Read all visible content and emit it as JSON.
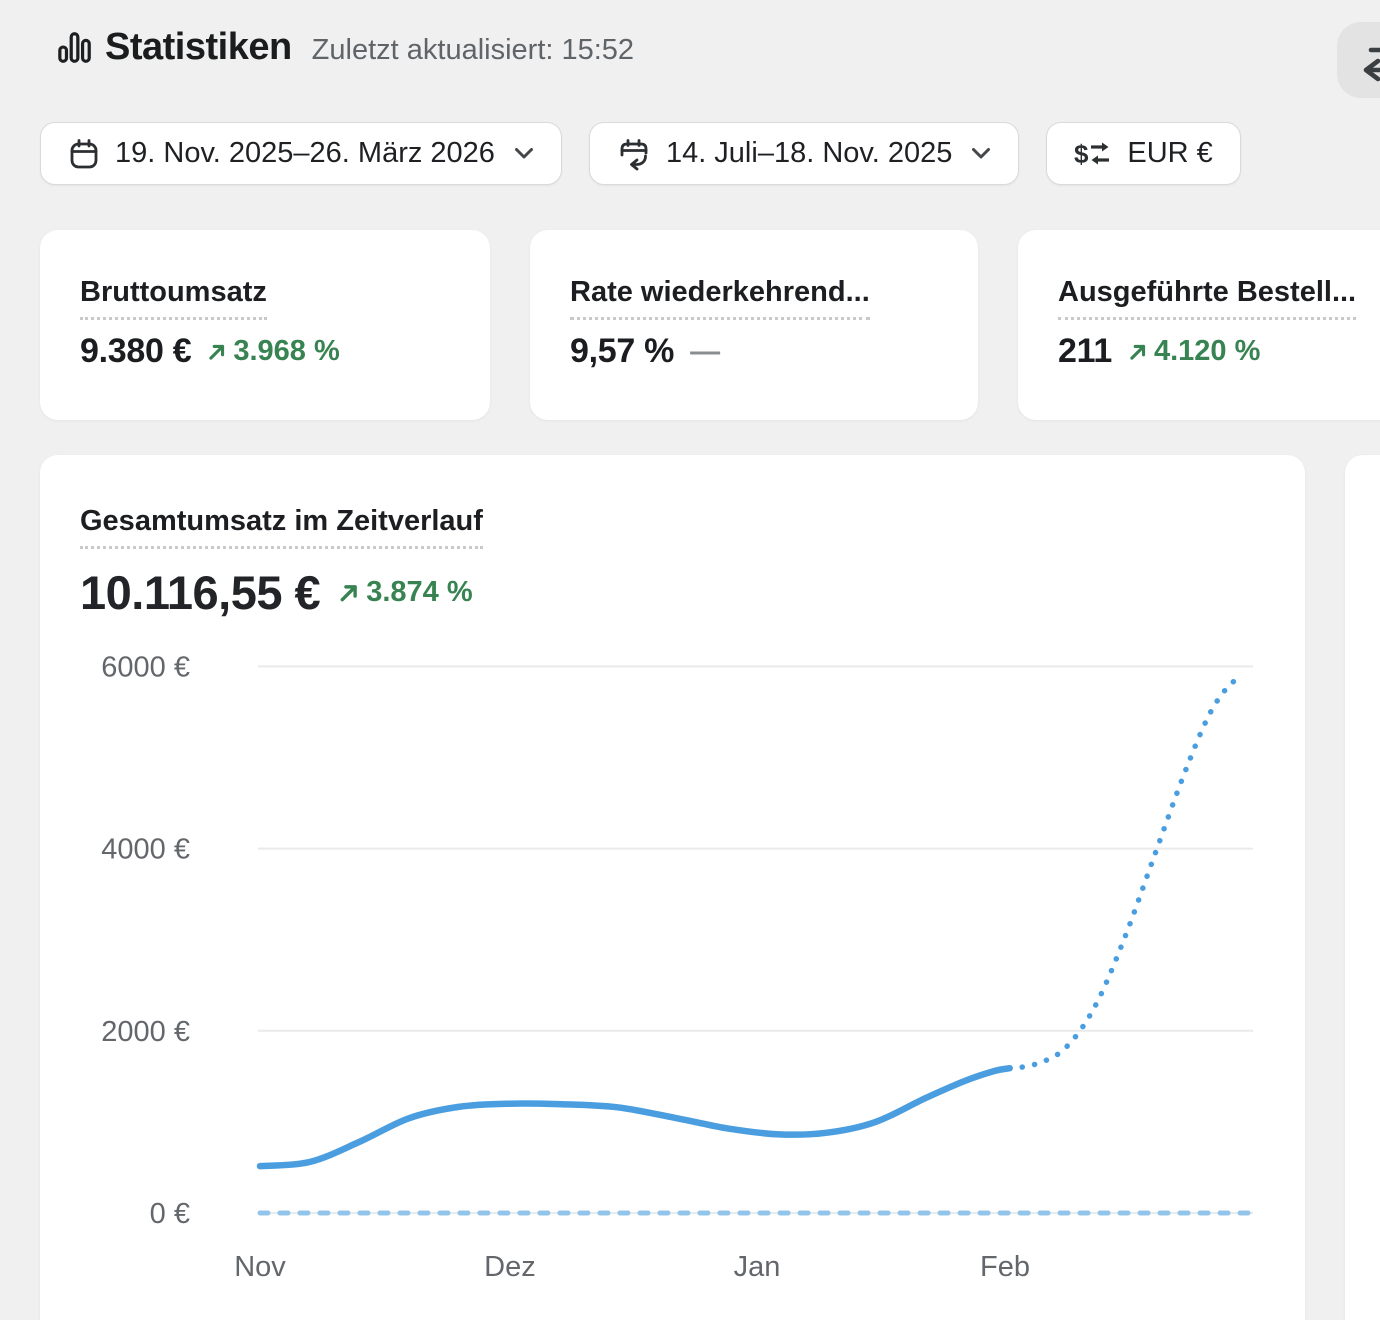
{
  "colors": {
    "bg": "#f0f0f0",
    "card": "#ffffff",
    "accent_blue": "#4a9ee0",
    "light_blue": "#93c4ea",
    "green": "#388352",
    "text_dark": "#1b1d20",
    "text_gray": "#5f6468",
    "border": "#dadada",
    "grid": "#e9eaeb",
    "sync_btn_bg": "#e3e3e4",
    "dash_gray": "#8a8d90",
    "dotted": "#c8c9ca"
  },
  "header": {
    "title": "Statistiken",
    "updated": "Zuletzt aktualisiert: 15:52"
  },
  "filters": {
    "date_range": "19. Nov. 2025–26. März 2026",
    "compare_range": "14. Juli–18. Nov. 2025",
    "currency": "EUR €"
  },
  "metrics": [
    {
      "title": "Bruttoumsatz",
      "value": "9.380 €",
      "delta": "3.968 %",
      "trend": "up"
    },
    {
      "title": "Rate wiederkehrend...",
      "value": "9,57 %",
      "delta": "—",
      "trend": "flat"
    },
    {
      "title": "Ausgeführte Bestell...",
      "value": "211",
      "delta": "4.120 %",
      "trend": "up"
    }
  ],
  "chart_card": {
    "title": "Gesamtumsatz im Zeitverlauf",
    "value": "10.116,55 €",
    "delta": "3.874 %"
  },
  "chart_data": {
    "type": "line",
    "title": "Gesamtumsatz im Zeitverlauf",
    "total": "10.116,55 €",
    "delta": "3.874 %",
    "currency": "EUR",
    "grid": true,
    "legend": "none",
    "ylim": [
      0,
      6400
    ],
    "yticks": [
      {
        "value": 0,
        "label": "0 €"
      },
      {
        "value": 2000,
        "label": "2000 €"
      },
      {
        "value": 4000,
        "label": "4000 €"
      },
      {
        "value": 6000,
        "label": "6000 €"
      }
    ],
    "xticks": [
      {
        "pos": 0.0,
        "label": "Nov"
      },
      {
        "pos": 0.2517,
        "label": "Dez"
      },
      {
        "pos": 0.5005,
        "label": "Jan"
      },
      {
        "pos": 0.7503,
        "label": "Feb"
      }
    ],
    "series": [
      {
        "name": "comparison",
        "style": "dashed",
        "color": "#93c4ea",
        "points": [
          [
            0,
            0
          ],
          [
            0.998,
            0
          ]
        ]
      },
      {
        "name": "actual",
        "style": "solid",
        "color": "#4a9ee0",
        "points": [
          [
            0,
            515
          ],
          [
            0.05,
            560
          ],
          [
            0.1,
            780
          ],
          [
            0.15,
            1040
          ],
          [
            0.2,
            1165
          ],
          [
            0.25,
            1200
          ],
          [
            0.3,
            1195
          ],
          [
            0.36,
            1160
          ],
          [
            0.42,
            1040
          ],
          [
            0.47,
            930
          ],
          [
            0.52,
            865
          ],
          [
            0.57,
            880
          ],
          [
            0.62,
            1000
          ],
          [
            0.67,
            1260
          ],
          [
            0.71,
            1450
          ],
          [
            0.74,
            1560
          ],
          [
            0.755,
            1590
          ]
        ]
      },
      {
        "name": "projection",
        "style": "dotted",
        "color": "#4a9ee0",
        "points": [
          [
            0.755,
            1590
          ],
          [
            0.78,
            1630
          ],
          [
            0.81,
            1800
          ],
          [
            0.84,
            2250
          ],
          [
            0.87,
            3000
          ],
          [
            0.9,
            3900
          ],
          [
            0.93,
            4800
          ],
          [
            0.955,
            5450
          ],
          [
            0.975,
            5780
          ],
          [
            0.99,
            5890
          ]
        ]
      }
    ]
  }
}
